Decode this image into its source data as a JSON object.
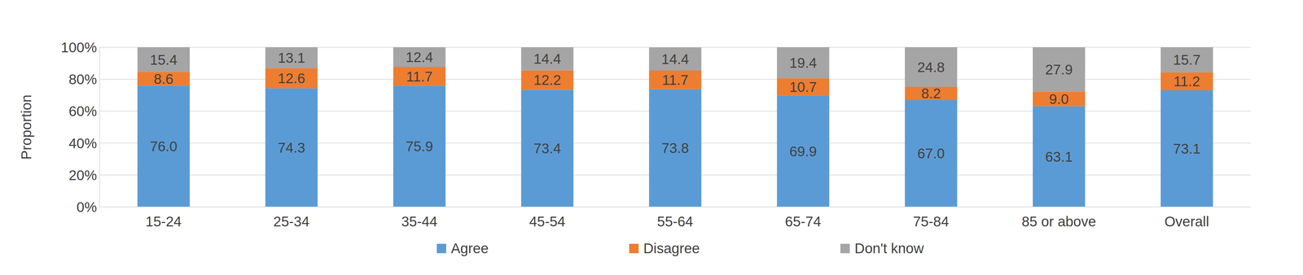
{
  "chart_data": {
    "type": "bar",
    "stacked": true,
    "data_labels": true,
    "grid": true,
    "legend": "bottom",
    "y_label": "Proportion",
    "categories": [
      "15-24",
      "25-34",
      "35-44",
      "45-54",
      "55-64",
      "65-74",
      "75-84",
      "85 or above",
      "Overall"
    ],
    "series": [
      {
        "name": "Agree",
        "color": "#5b9bd5",
        "values": [
          76.0,
          74.3,
          75.9,
          73.4,
          73.8,
          69.9,
          67.0,
          63.1,
          73.1
        ]
      },
      {
        "name": "Disagree",
        "color": "#ed7d31",
        "values": [
          8.6,
          12.6,
          11.7,
          12.2,
          11.7,
          10.7,
          8.2,
          9.0,
          11.2
        ]
      },
      {
        "name": "Don't know",
        "color": "#a5a5a5",
        "values": [
          15.4,
          13.1,
          12.4,
          14.4,
          14.4,
          19.4,
          24.8,
          27.9,
          15.7
        ]
      }
    ],
    "ylim": [
      0,
      100
    ],
    "yticks": [
      {
        "value": 0,
        "label": "0%"
      },
      {
        "value": 20,
        "label": "20%"
      },
      {
        "value": 40,
        "label": "40%"
      },
      {
        "value": 60,
        "label": "60%"
      },
      {
        "value": 80,
        "label": "80%"
      },
      {
        "value": 100,
        "label": "100%"
      }
    ]
  }
}
